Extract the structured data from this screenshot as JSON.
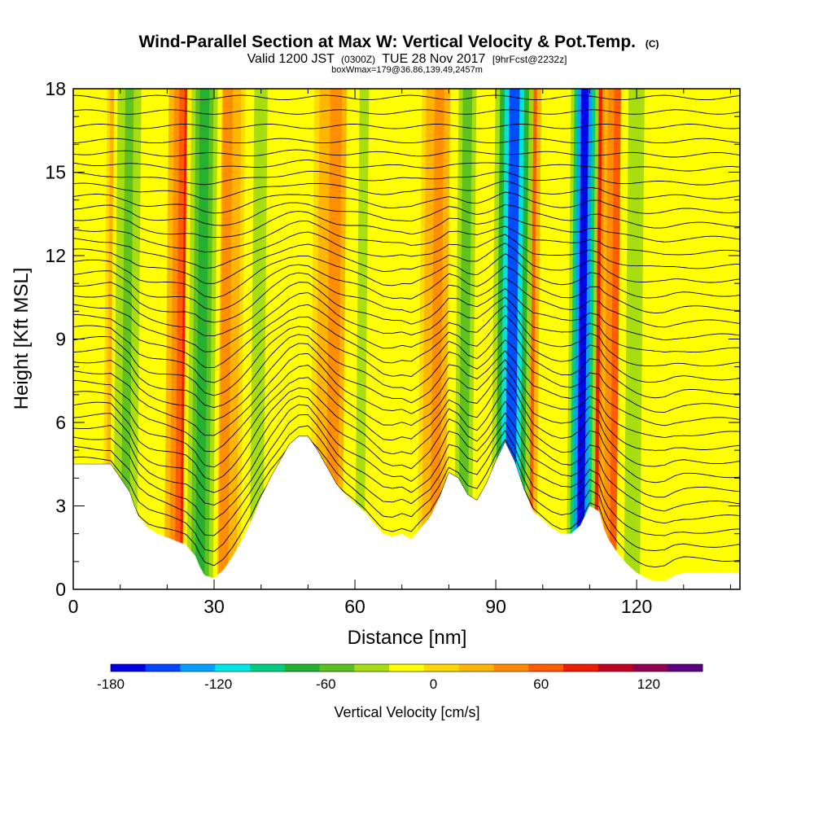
{
  "header": {
    "title": "Wind-Parallel Section at Max W: Vertical Velocity & Pot.Temp.",
    "title_mark": "(C)",
    "valid_prefix": "Valid 1200 JST",
    "valid_small": "(0300Z)",
    "valid_date": "TUE 28 Nov 2017",
    "valid_fcst": "[9hrFcst@2232z]",
    "box_info": "boxWmax=179@36.86,139.49,2457m"
  },
  "chart_data": {
    "type": "heatmap",
    "xlabel": "Distance [nm]",
    "ylabel": "Height [Kft MSL]",
    "xlim": [
      0,
      142
    ],
    "ylim": [
      0,
      18
    ],
    "x_ticks": [
      0,
      30,
      60,
      90,
      120
    ],
    "y_ticks": [
      0,
      3,
      6,
      9,
      12,
      15,
      18
    ],
    "colorbar": {
      "title": "Vertical Velocity [cm/s]",
      "min": -180,
      "max": 150,
      "tick_labels": [
        "-180",
        "-120",
        "-60",
        "0",
        "60",
        "120"
      ],
      "tick_values": [
        -180,
        -120,
        -60,
        0,
        60,
        120
      ],
      "colors": [
        "#0000e6",
        "#0044ff",
        "#00a0ff",
        "#00e6e6",
        "#00cc80",
        "#22b030",
        "#5cc020",
        "#a6dc10",
        "#ffff00",
        "#ffd800",
        "#ffb400",
        "#ff8c00",
        "#ff5a00",
        "#ee1c00",
        "#c00020",
        "#900050",
        "#5a0080"
      ]
    },
    "terrain_height_kft": [
      [
        0,
        4.5
      ],
      [
        8,
        4.5
      ],
      [
        10,
        4.0
      ],
      [
        12,
        3.5
      ],
      [
        13,
        3.0
      ],
      [
        14,
        2.6
      ],
      [
        16,
        2.2
      ],
      [
        18,
        2.0
      ],
      [
        21,
        1.8
      ],
      [
        24,
        1.6
      ],
      [
        26,
        1.2
      ],
      [
        27,
        0.8
      ],
      [
        28,
        0.5
      ],
      [
        30,
        0.4
      ],
      [
        32,
        0.7
      ],
      [
        34,
        1.2
      ],
      [
        36,
        1.8
      ],
      [
        38,
        2.5
      ],
      [
        40,
        3.3
      ],
      [
        42,
        4.0
      ],
      [
        44,
        4.6
      ],
      [
        46,
        5.2
      ],
      [
        48,
        5.5
      ],
      [
        50,
        5.5
      ],
      [
        52,
        5.0
      ],
      [
        54,
        4.4
      ],
      [
        56,
        3.8
      ],
      [
        58,
        3.4
      ],
      [
        60,
        3.1
      ],
      [
        62,
        2.8
      ],
      [
        64,
        2.4
      ],
      [
        66,
        2.0
      ],
      [
        68,
        1.9
      ],
      [
        70,
        2.0
      ],
      [
        72,
        1.8
      ],
      [
        74,
        2.2
      ],
      [
        76,
        2.6
      ],
      [
        78,
        3.3
      ],
      [
        80,
        4.2
      ],
      [
        82,
        4.0
      ],
      [
        84,
        3.4
      ],
      [
        86,
        3.2
      ],
      [
        88,
        3.8
      ],
      [
        90,
        4.6
      ],
      [
        92,
        5.3
      ],
      [
        94,
        4.6
      ],
      [
        96,
        3.6
      ],
      [
        98,
        2.8
      ],
      [
        100,
        2.5
      ],
      [
        102,
        2.2
      ],
      [
        104,
        2.0
      ],
      [
        106,
        2.0
      ],
      [
        108,
        2.3
      ],
      [
        110,
        3.0
      ],
      [
        112,
        2.8
      ],
      [
        113,
        2.2
      ],
      [
        114,
        1.8
      ],
      [
        116,
        1.3
      ],
      [
        118,
        0.9
      ],
      [
        120,
        0.6
      ],
      [
        122,
        0.4
      ],
      [
        124,
        0.3
      ],
      [
        126,
        0.3
      ],
      [
        128,
        0.5
      ],
      [
        130,
        0.6
      ],
      [
        132,
        0.6
      ],
      [
        135,
        0.6
      ],
      [
        138,
        0.6
      ],
      [
        142,
        0.6
      ]
    ],
    "updraft_bands": [
      {
        "x": 10,
        "width": 1.5,
        "value": 50
      },
      {
        "x": 25,
        "width": 2.5,
        "value": 90
      },
      {
        "x": 33,
        "width": 2.0,
        "value": 40
      },
      {
        "x": 56,
        "width": 2.5,
        "value": 35
      },
      {
        "x": 78,
        "width": 2.0,
        "value": 40
      },
      {
        "x": 96,
        "width": 2.0,
        "value": 130
      },
      {
        "x": 111,
        "width": 1.8,
        "value": 100
      },
      {
        "x": 116,
        "width": 1.5,
        "value": 70
      }
    ],
    "downdraft_bands": [
      {
        "x": 12,
        "width": 1.8,
        "value": -55
      },
      {
        "x": 28,
        "width": 2.0,
        "value": -65
      },
      {
        "x": 40,
        "width": 1.5,
        "value": -35
      },
      {
        "x": 62,
        "width": 2.0,
        "value": -30
      },
      {
        "x": 84,
        "width": 2.0,
        "value": -45
      },
      {
        "x": 94,
        "width": 2.2,
        "value": -150
      },
      {
        "x": 109,
        "width": 1.6,
        "value": -175
      },
      {
        "x": 120,
        "width": 1.8,
        "value": -40
      }
    ],
    "contour_count": 34
  }
}
